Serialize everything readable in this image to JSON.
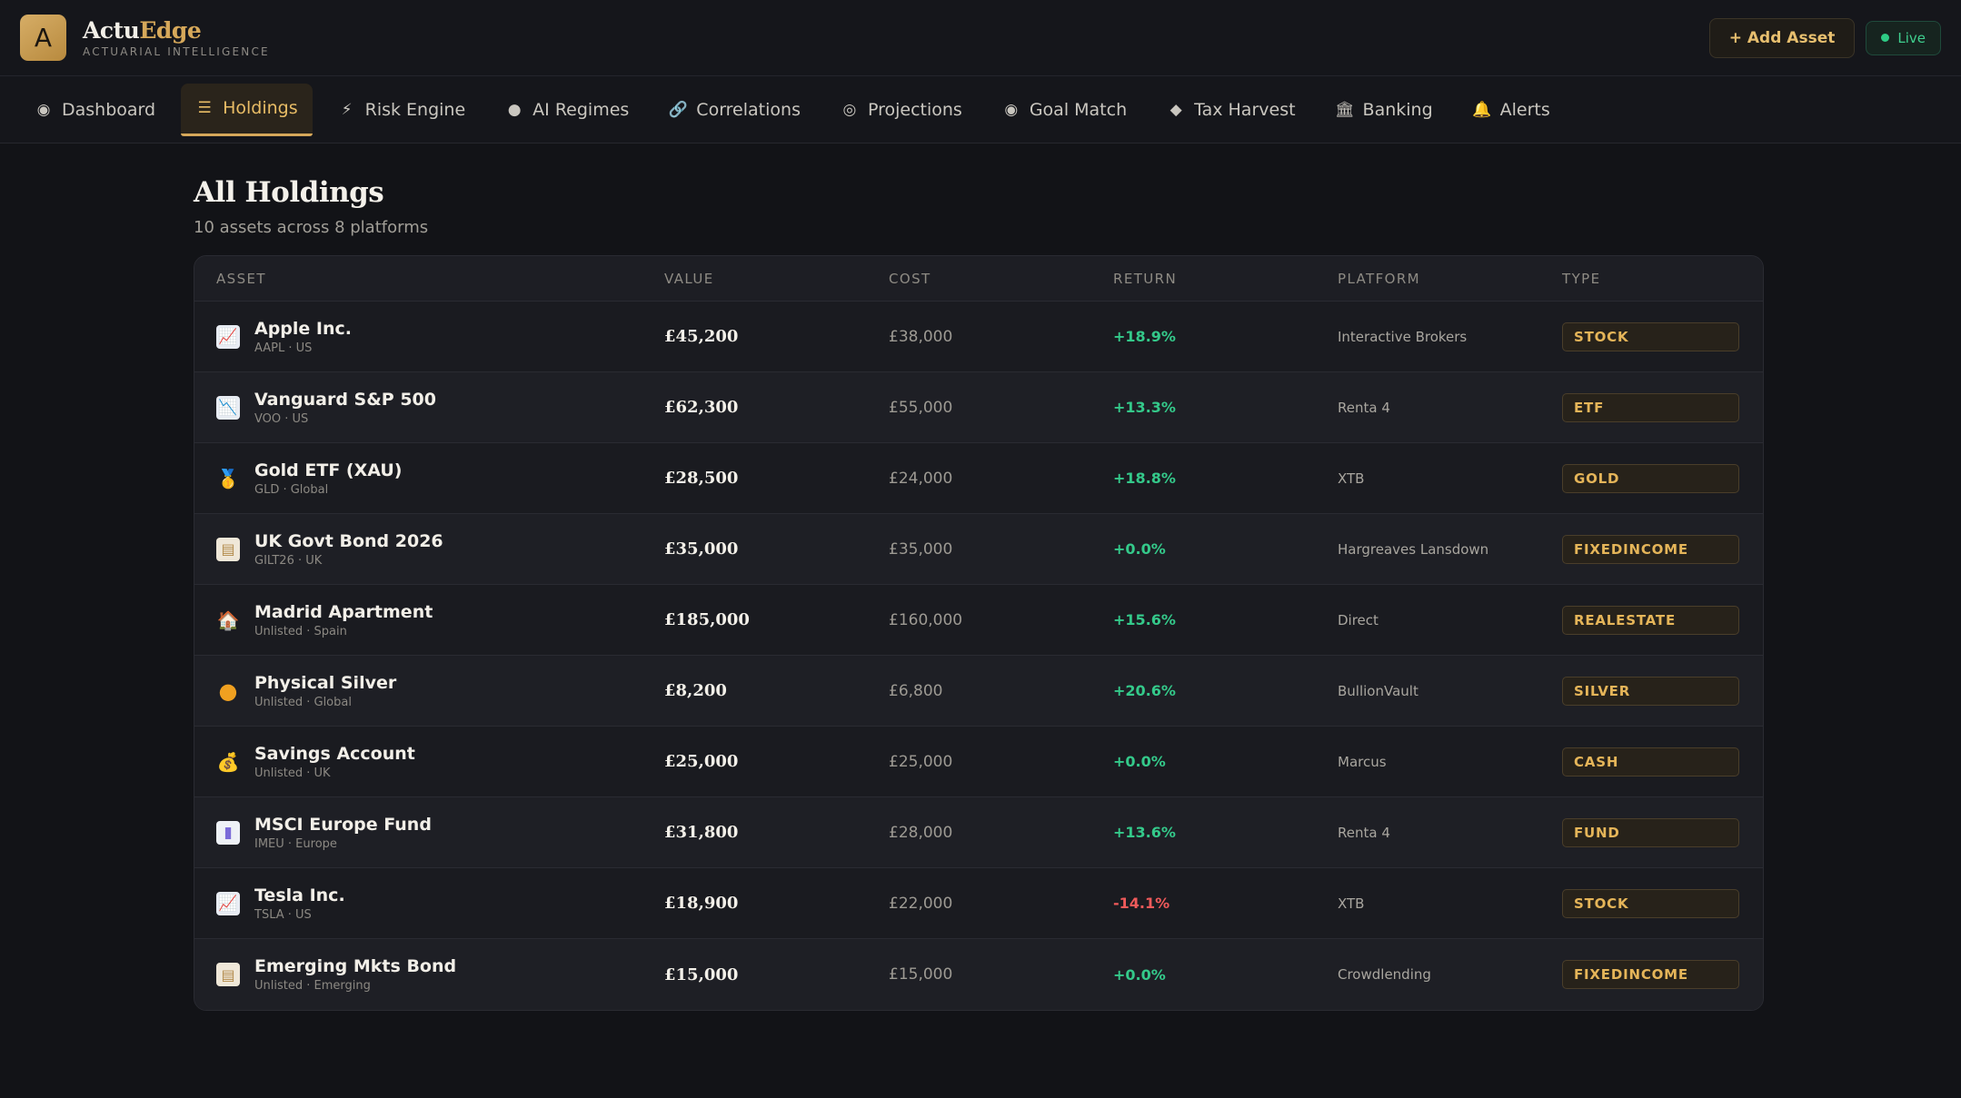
{
  "app": {
    "logo_letter": "A",
    "name_part1": "Actu",
    "name_part2": "Edge",
    "tagline": "ACTUARIAL INTELLIGENCE",
    "add_asset_label": "+ Add Asset",
    "live_label": "Live"
  },
  "nav": {
    "tabs": [
      {
        "label": "Dashboard",
        "icon": "radio-dot-icon",
        "glyph": "◉"
      },
      {
        "label": "Holdings",
        "icon": "list-icon",
        "glyph": "☰",
        "active": true
      },
      {
        "label": "Risk Engine",
        "icon": "lightning-icon",
        "glyph": "⚡"
      },
      {
        "label": "AI Regimes",
        "icon": "brain-icon",
        "glyph": "●"
      },
      {
        "label": "Correlations",
        "icon": "link-icon",
        "glyph": "🔗"
      },
      {
        "label": "Projections",
        "icon": "target-ring-icon",
        "glyph": "◎"
      },
      {
        "label": "Goal Match",
        "icon": "bullseye-icon",
        "glyph": "◉"
      },
      {
        "label": "Tax Harvest",
        "icon": "gem-icon",
        "glyph": "◆"
      },
      {
        "label": "Banking",
        "icon": "bank-icon",
        "glyph": "🏛"
      },
      {
        "label": "Alerts",
        "icon": "bell-icon",
        "glyph": "🔔"
      }
    ]
  },
  "page": {
    "title": "All Holdings",
    "subtitle": "10 assets across 8 platforms"
  },
  "table": {
    "headers": [
      "ASSET",
      "VALUE",
      "COST",
      "RETURN",
      "PLATFORM",
      "TYPE"
    ],
    "rows": [
      {
        "name": "Apple Inc.",
        "meta": "AAPL · US",
        "value": "£45,200",
        "cost": "£38,000",
        "return": "+18.9%",
        "platform": "Interactive Brokers",
        "type": "STOCK",
        "icon": "chart-up-icon"
      },
      {
        "name": "Vanguard S&P 500",
        "meta": "VOO · US",
        "value": "£62,300",
        "cost": "£55,000",
        "return": "+13.3%",
        "platform": "Renta 4",
        "type": "ETF",
        "icon": "chart-down-icon"
      },
      {
        "name": "Gold ETF (XAU)",
        "meta": "GLD · Global",
        "value": "£28,500",
        "cost": "£24,000",
        "return": "+18.8%",
        "platform": "XTB",
        "type": "GOLD",
        "icon": "medal-icon"
      },
      {
        "name": "UK Govt Bond 2026",
        "meta": "GILT26 · UK",
        "value": "£35,000",
        "cost": "£35,000",
        "return": "+0.0%",
        "platform": "Hargreaves Lansdown",
        "type": "FIXEDINCOME",
        "icon": "document-icon"
      },
      {
        "name": "Madrid Apartment",
        "meta": "Unlisted · Spain",
        "value": "£185,000",
        "cost": "£160,000",
        "return": "+15.6%",
        "platform": "Direct",
        "type": "REALESTATE",
        "icon": "house-icon"
      },
      {
        "name": "Physical Silver",
        "meta": "Unlisted · Global",
        "value": "£8,200",
        "cost": "£6,800",
        "return": "+20.6%",
        "platform": "BullionVault",
        "type": "SILVER",
        "icon": "coin-icon"
      },
      {
        "name": "Savings Account",
        "meta": "Unlisted · UK",
        "value": "£25,000",
        "cost": "£25,000",
        "return": "+0.0%",
        "platform": "Marcus",
        "type": "CASH",
        "icon": "money-bag-icon"
      },
      {
        "name": "MSCI Europe Fund",
        "meta": "IMEU · Europe",
        "value": "£31,800",
        "cost": "£28,000",
        "return": "+13.6%",
        "platform": "Renta 4",
        "type": "FUND",
        "icon": "bar-chart-icon"
      },
      {
        "name": "Tesla Inc.",
        "meta": "TSLA · US",
        "value": "£18,900",
        "cost": "£22,000",
        "return": "-14.1%",
        "platform": "XTB",
        "type": "STOCK",
        "icon": "chart-up-icon"
      },
      {
        "name": "Emerging Mkts Bond",
        "meta": "Unlisted · Emerging",
        "value": "£15,000",
        "cost": "£15,000",
        "return": "+0.0%",
        "platform": "Crowdlending",
        "type": "FIXEDINCOME",
        "icon": "document-icon"
      }
    ]
  },
  "colors": {
    "background": "#121317",
    "accent_gold": "#d6a85a",
    "positive": "#34c98a",
    "negative": "#ef5a5a",
    "live_green": "#2ecc85"
  }
}
